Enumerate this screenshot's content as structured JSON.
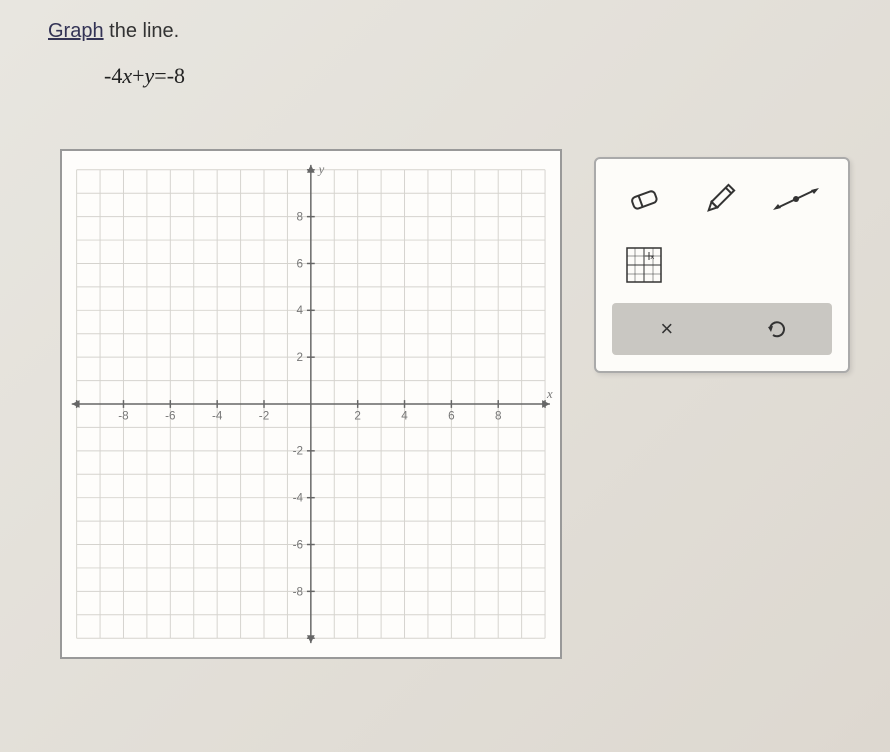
{
  "instruction": {
    "prefix": "Graph",
    "suffix": " the line."
  },
  "equation": {
    "lhs_coeff": "-4",
    "lhs_var1": "x",
    "lhs_op": "+",
    "lhs_var2": "y",
    "eq": "=",
    "rhs": "-8"
  },
  "graph": {
    "xmin": -10,
    "xmax": 10,
    "ymin": -10,
    "ymax": 10,
    "grid_step": 1,
    "label_step": 2,
    "x_axis_label": "x",
    "y_axis_label": "y",
    "x_tick_labels": [
      "-8",
      "-6",
      "-4",
      "-2",
      "2",
      "4",
      "6",
      "8"
    ],
    "x_tick_positions": [
      -8,
      -6,
      -4,
      -2,
      2,
      4,
      6,
      8
    ],
    "y_tick_labels": [
      "8",
      "6",
      "4",
      "2",
      "-2",
      "-4",
      "-6",
      "-8"
    ],
    "y_tick_positions": [
      8,
      6,
      4,
      2,
      -2,
      -4,
      -6,
      -8
    ],
    "background_color": "#fefdfb",
    "grid_color": "#d5d3ce",
    "axis_color": "#666",
    "tick_label_color": "#777",
    "tick_fontsize": 12
  },
  "toolbox": {
    "tools": {
      "eraser": "eraser-icon",
      "pencil": "pencil-icon",
      "line": "line-icon",
      "grid_point": "grid-point-icon"
    },
    "actions": {
      "clear": "×",
      "undo": "↺"
    },
    "colors": {
      "panel_bg": "#fdfcf9",
      "panel_border": "#aaa",
      "action_bar_bg": "#c9c7c2",
      "icon_stroke": "#333"
    }
  }
}
